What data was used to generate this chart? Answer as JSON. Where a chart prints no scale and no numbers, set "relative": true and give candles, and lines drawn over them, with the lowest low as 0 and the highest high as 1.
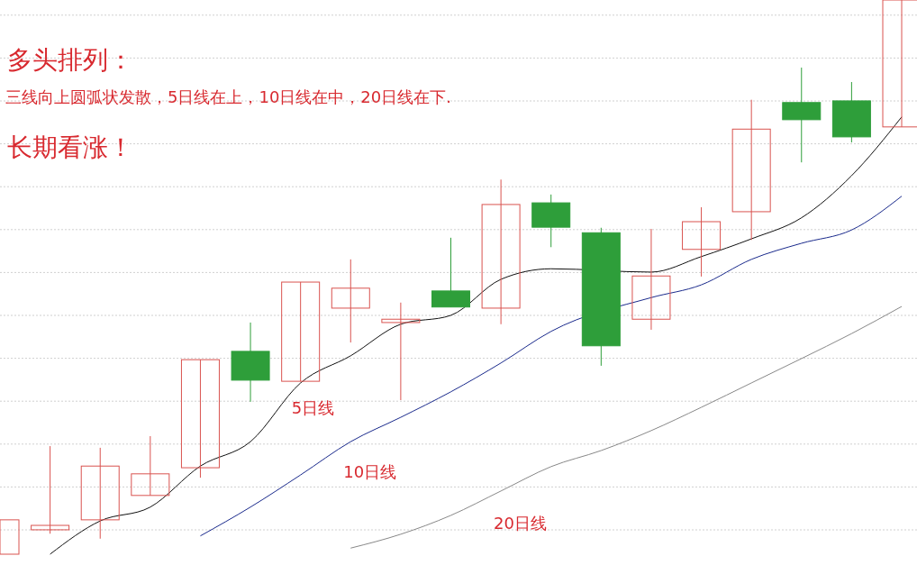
{
  "chart_data": {
    "type": "candlestick",
    "title": "多头排列：",
    "subtitle": "三线向上圆弧状发散，5日线在上，10日线在中，20日线在下.",
    "annotations": [
      "长期看涨！"
    ],
    "relative": true,
    "grid": "y",
    "categories": [
      null,
      null,
      null,
      null,
      null,
      null,
      null,
      null,
      null,
      null,
      null,
      null,
      null,
      null,
      null,
      null,
      null,
      null,
      null
    ],
    "ohlc": [
      [
        0,
        0.062,
        0,
        0.062
      ],
      [
        0.044,
        0.195,
        0.037,
        0.052
      ],
      [
        0.062,
        0.192,
        0.028,
        0.159
      ],
      [
        0.106,
        0.213,
        0.106,
        0.145
      ],
      [
        0.156,
        0.351,
        0.138,
        0.351
      ],
      [
        0.366,
        0.418,
        0.275,
        0.314
      ],
      [
        0.312,
        0.491,
        0.312,
        0.491
      ],
      [
        0.444,
        0.532,
        0.382,
        0.48
      ],
      [
        0.418,
        0.454,
        0.278,
        0.424
      ],
      [
        0.475,
        0.571,
        0.446,
        0.446
      ],
      [
        0.444,
        0.676,
        0.415,
        0.631
      ],
      [
        0.634,
        0.649,
        0.554,
        0.59
      ],
      [
        0.58,
        0.589,
        0.34,
        0.376
      ],
      [
        0.424,
        0.587,
        0.405,
        0.502
      ],
      [
        0.55,
        0.626,
        0.501,
        0.6
      ],
      [
        0.618,
        0.82,
        0.567,
        0.767
      ],
      [
        0.815,
        0.878,
        0.707,
        0.784
      ],
      [
        0.818,
        0.852,
        0.743,
        0.753
      ],
      [
        0.771,
        1,
        0.771,
        1
      ]
    ],
    "colors": [
      "#d9534f",
      "#d9534f",
      "#d9534f",
      "#d9534f",
      "#d9534f",
      "#2e9e3a",
      "#d9534f",
      "#d9534f",
      "#d9534f",
      "#2e9e3a",
      "#d9534f",
      "#2e9e3a",
      "#2e9e3a",
      "#d9534f",
      "#d9534f",
      "#d9534f",
      "#2e9e3a",
      "#2e9e3a",
      "#d9534f"
    ],
    "series": [
      {
        "name": "5日线",
        "type": "line",
        "color": "#111111",
        "values": [
          null,
          0,
          0.06,
          0.085,
          0.159,
          0.203,
          0.309,
          0.358,
          0.415,
          0.431,
          0.496,
          0.515,
          null,
          0.509,
          0.537,
          0.569,
          0.607,
          0.683,
          0.789
        ]
      },
      {
        "name": "10日线",
        "type": "line",
        "color": "#1a2a8c",
        "values": [
          null,
          null,
          null,
          null,
          0.033,
          0.085,
          0.143,
          0.203,
          0.247,
          0.293,
          0.345,
          0.402,
          null,
          0.463,
          0.486,
          0.532,
          0.561,
          0.585,
          0.646
        ]
      },
      {
        "name": "20日线",
        "type": "line",
        "color": "#888888",
        "values": [
          null,
          null,
          null,
          null,
          null,
          null,
          null,
          0.011,
          0.036,
          0.07,
          0.114,
          0.158,
          0.187,
          0.223,
          0.265,
          0.309,
          0.353,
          0.398,
          0.447
        ]
      }
    ]
  }
}
